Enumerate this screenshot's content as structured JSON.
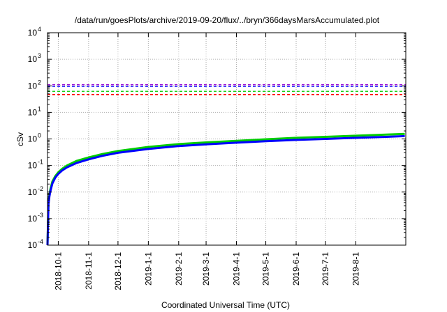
{
  "chart_data": {
    "type": "line",
    "title": "/data/run/goesPlots/archive/2019-09-20/flux/../bryn/366daysMarsAccumulated.plot",
    "xlabel": "Coordinated Universal Time (UTC)",
    "ylabel": "cSv",
    "y_scale": "log",
    "ylim_exponent": [
      -4,
      4
    ],
    "xlim": [
      "2018-09-20",
      "2019-09-21"
    ],
    "grid": true,
    "x_tick_labels": [
      "2018-10-1",
      "2018-11-1",
      "2018-12-1",
      "2019-1-1",
      "2019-2-1",
      "2019-3-1",
      "2019-4-1",
      "2019-5-1",
      "2019-6-1",
      "2019-7-1",
      "2019-8-1"
    ],
    "x_ticks": [
      "2018-10-01",
      "2018-11-01",
      "2018-12-01",
      "2019-01-01",
      "2019-02-01",
      "2019-03-01",
      "2019-04-01",
      "2019-05-01",
      "2019-06-01",
      "2019-07-01",
      "2019-08-01"
    ],
    "y_ticks": [
      {
        "base": "10",
        "exp": "-4"
      },
      {
        "base": "10",
        "exp": "-3"
      },
      {
        "base": "10",
        "exp": "-2"
      },
      {
        "base": "10",
        "exp": "-1"
      },
      {
        "base": "10",
        "exp": "0"
      },
      {
        "base": "10",
        "exp": "1"
      },
      {
        "base": "10",
        "exp": "2"
      },
      {
        "base": "10",
        "exp": "3"
      },
      {
        "base": "10",
        "exp": "4"
      }
    ],
    "reference_lines": [
      {
        "value": 110,
        "color": "#9400d3",
        "style": "dashed"
      },
      {
        "value": 95,
        "color": "#0000ff",
        "style": "dashed"
      },
      {
        "value": 62,
        "color": "#00cc00",
        "style": "dashed"
      },
      {
        "value": 47,
        "color": "#ff0000",
        "style": "dashed"
      }
    ],
    "series": [
      {
        "color": "#00cc00",
        "width": 3,
        "x": [
          "2018-09-20",
          "2018-09-21",
          "2018-09-22",
          "2018-09-23",
          "2018-09-25",
          "2018-09-28",
          "2018-10-01",
          "2018-10-05",
          "2018-10-10",
          "2018-10-20",
          "2018-11-01",
          "2018-11-15",
          "2018-12-01",
          "2019-01-01",
          "2019-02-01",
          "2019-03-01",
          "2019-04-01",
          "2019-05-01",
          "2019-06-01",
          "2019-07-01",
          "2019-08-01",
          "2019-09-01",
          "2019-09-20"
        ],
        "y": [
          0.0001,
          0.004,
          0.008,
          0.013,
          0.025,
          0.04,
          0.055,
          0.075,
          0.1,
          0.15,
          0.2,
          0.27,
          0.35,
          0.5,
          0.64,
          0.74,
          0.85,
          0.97,
          1.1,
          1.2,
          1.32,
          1.45,
          1.55
        ]
      },
      {
        "color": "#0000ff",
        "width": 3,
        "x": [
          "2018-09-20",
          "2018-09-21",
          "2018-09-22",
          "2018-09-23",
          "2018-09-25",
          "2018-09-28",
          "2018-10-01",
          "2018-10-05",
          "2018-10-10",
          "2018-10-20",
          "2018-11-01",
          "2018-11-15",
          "2018-12-01",
          "2019-01-01",
          "2019-02-01",
          "2019-03-01",
          "2019-04-01",
          "2019-05-01",
          "2019-06-01",
          "2019-07-01",
          "2019-08-01",
          "2019-09-01",
          "2019-09-20"
        ],
        "y": [
          0.0001,
          0.0035,
          0.007,
          0.011,
          0.021,
          0.035,
          0.048,
          0.065,
          0.085,
          0.125,
          0.17,
          0.23,
          0.3,
          0.42,
          0.54,
          0.63,
          0.72,
          0.82,
          0.92,
          1.0,
          1.1,
          1.2,
          1.28
        ]
      }
    ]
  }
}
